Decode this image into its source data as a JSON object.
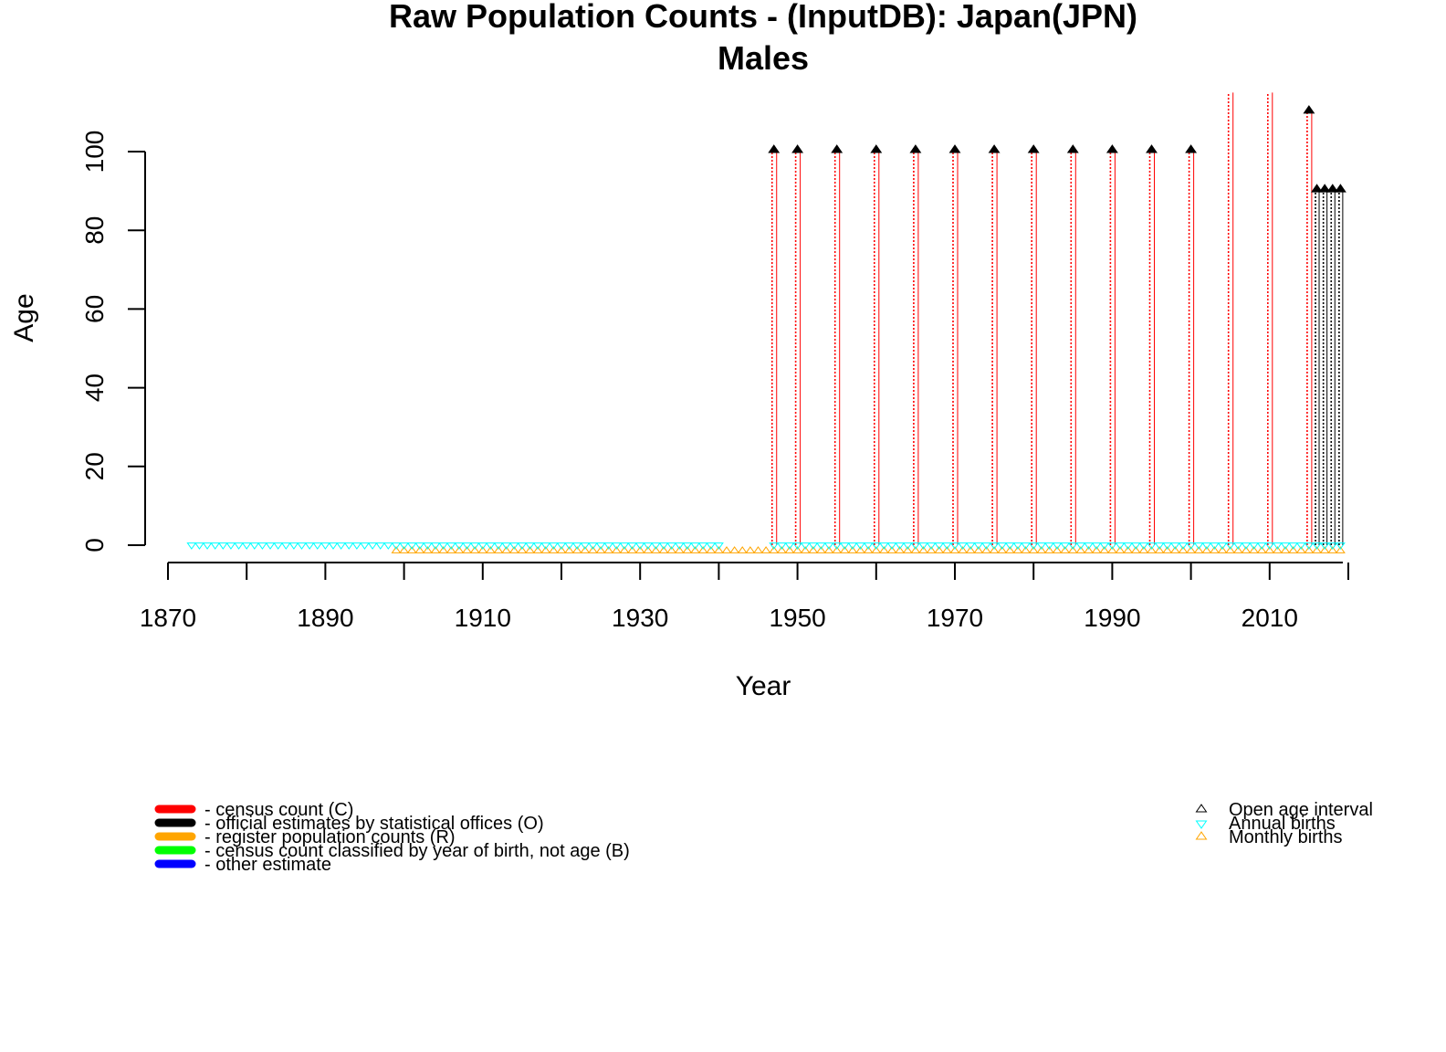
{
  "chart_data": {
    "type": "scatter",
    "title": "Raw Population Counts - (InputDB): Japan(JPN)",
    "subtitle": "Males",
    "xlabel": "Year",
    "ylabel": "Age",
    "xlim": [
      1870,
      2020
    ],
    "ylim": [
      0,
      100
    ],
    "x_ticks": [
      "1870",
      "1890",
      "1910",
      "1930",
      "1950",
      "1970",
      "1990",
      "2010"
    ],
    "y_ticks": [
      "0",
      "20",
      "40",
      "60",
      "80",
      "100"
    ],
    "grid": false,
    "colors": {
      "census": "#ff0000",
      "official": "#000000",
      "register": "#ffa500",
      "cohort": "#00ff00",
      "other": "#0000ff",
      "annual_births": "#00ffff",
      "monthly_births": "#ffa500"
    },
    "series": [
      {
        "name": "- census count (C)",
        "type": "segments",
        "color": "#ff0000",
        "x": [
          1947,
          1950,
          1955,
          1960,
          1965,
          1970,
          1975,
          1980,
          1985,
          1990,
          1995,
          2000,
          2005,
          2010,
          2015
        ],
        "age_top": [
          100,
          100,
          100,
          100,
          100,
          100,
          100,
          100,
          100,
          100,
          100,
          100,
          115,
          115,
          110
        ]
      },
      {
        "name": "- official estimates by statistical offices (O)",
        "type": "segments",
        "color": "#000000",
        "x": [
          2016,
          2017,
          2018,
          2019
        ],
        "age_top": [
          90,
          90,
          90,
          90
        ]
      },
      {
        "name": "Open age interval",
        "type": "points",
        "marker": "triangle-up",
        "color": "#000000",
        "x": [
          1947,
          1950,
          1955,
          1960,
          1965,
          1970,
          1975,
          1980,
          1985,
          1990,
          1995,
          2000,
          2015,
          2016,
          2017,
          2018,
          2019
        ],
        "y": [
          100,
          100,
          100,
          100,
          100,
          100,
          100,
          100,
          100,
          100,
          100,
          100,
          110,
          90,
          90,
          90,
          90
        ]
      },
      {
        "name": "Annual births",
        "type": "points",
        "marker": "triangle-down",
        "color": "#00ffff",
        "x_range": [
          1873,
          2019
        ],
        "gaps": [
          [
            1941,
            1946
          ]
        ],
        "y": 0
      },
      {
        "name": "Monthly births",
        "type": "points",
        "marker": "triangle-up",
        "color": "#ffa500",
        "x_range": [
          1899,
          2019
        ],
        "y": -1
      }
    ],
    "legend_left": {
      "placement": "bottom-left",
      "items": [
        {
          "label": "- census count (C)",
          "color": "#ff0000"
        },
        {
          "label": "- official estimates by statistical offices (O)",
          "color": "#000000"
        },
        {
          "label": "- register population counts (R)",
          "color": "#ffa500"
        },
        {
          "label": "- census count classified by year of birth, not age (B)",
          "color": "#00ff00"
        },
        {
          "label": "- other estimate",
          "color": "#0000ff"
        }
      ]
    },
    "legend_right": {
      "placement": "bottom-right",
      "items": [
        {
          "label": "Open age interval",
          "marker": "triangle-up",
          "color": "#000000"
        },
        {
          "label": "Annual births",
          "marker": "triangle-down",
          "color": "#00ffff"
        },
        {
          "label": "Monthly births",
          "marker": "triangle-up",
          "color": "#ffa500"
        }
      ]
    }
  }
}
